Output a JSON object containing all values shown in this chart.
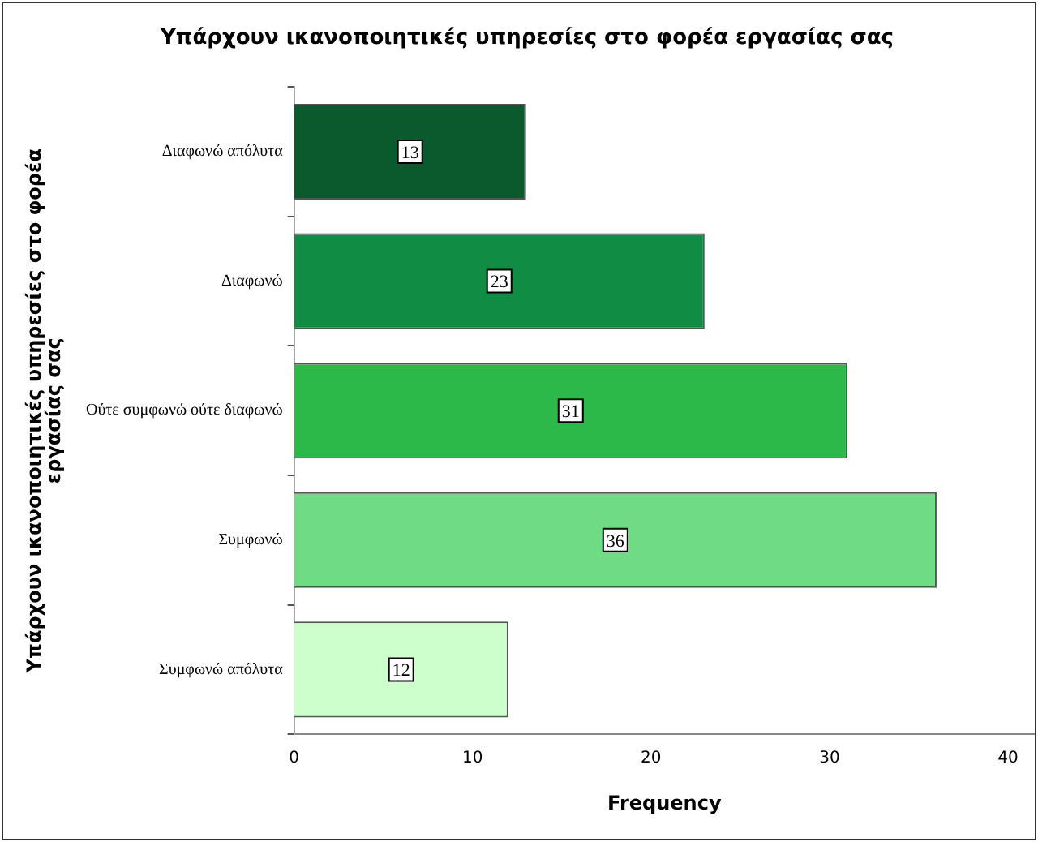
{
  "chart_data": {
    "type": "bar",
    "orientation": "horizontal",
    "title": "Υπάρχουν ικανοποιητικές υπηρεσίες στο φορέα εργασίας σας",
    "xlabel": "Frequency",
    "ylabel": "Υπάρχουν ικανοποιητικές υπηρεσίες στο φορέα εργασίας σας",
    "categories": [
      "Διαφωνώ απόλυτα",
      "Διαφωνώ",
      "Ούτε συμφωνώ ούτε διαφωνώ",
      "Συμφωνώ",
      "Συμφωνώ απόλυτα"
    ],
    "values": [
      13,
      23,
      31,
      36,
      12
    ],
    "colors": [
      "#0b5a2e",
      "#108c45",
      "#2db84a",
      "#6fdc85",
      "#ccffcc"
    ],
    "xlim": [
      0,
      41.5
    ],
    "xticks": [
      0,
      10,
      20,
      30,
      40
    ],
    "data_labels": true,
    "grid": false,
    "legend": false
  }
}
